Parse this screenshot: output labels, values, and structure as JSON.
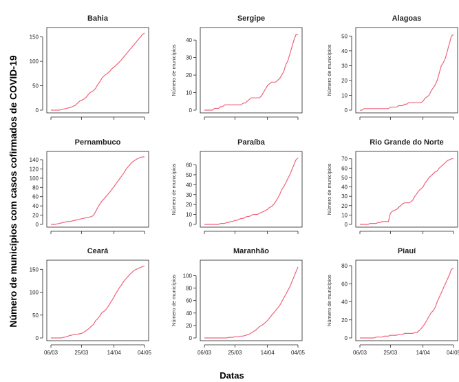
{
  "figure": {
    "ylabel": "Número de municípios com casos cofirmados de COVID-19",
    "xlabel": "Datas"
  },
  "chart_data": [
    {
      "type": "line",
      "title": "Bahia",
      "ylabel": "",
      "yticks": [
        0,
        50,
        100,
        150
      ],
      "ylim": [
        0,
        158
      ],
      "xticks": [],
      "series": [
        {
          "values": [
            0,
            0,
            0,
            0,
            0,
            1,
            2,
            3,
            4,
            5,
            6,
            8,
            10,
            14,
            18,
            20,
            22,
            25,
            30,
            35,
            38,
            40,
            45,
            52,
            58,
            65,
            70,
            73,
            76,
            80,
            85,
            88,
            92,
            96,
            100,
            105,
            110,
            115,
            120,
            125,
            130,
            135,
            140,
            145,
            150,
            155,
            158
          ]
        }
      ],
      "line_color": "#f0627a"
    },
    {
      "type": "line",
      "title": "Sergipe",
      "ylabel": "Número de municípios",
      "yticks": [
        0,
        10,
        20,
        30,
        40
      ],
      "ylim": [
        0,
        44
      ],
      "xticks": [],
      "series": [
        {
          "values": [
            0,
            0,
            0,
            0,
            0,
            1,
            1,
            1,
            2,
            2,
            3,
            3,
            3,
            3,
            3,
            3,
            3,
            3,
            3,
            4,
            4,
            5,
            6,
            7,
            7,
            7,
            7,
            7,
            8,
            10,
            12,
            14,
            15,
            16,
            16,
            16,
            17,
            18,
            20,
            22,
            26,
            28,
            32,
            36,
            40,
            43,
            43
          ]
        }
      ],
      "line_color": "#f0627a"
    },
    {
      "type": "line",
      "title": "Alagoas",
      "ylabel": "Número de municípios",
      "yticks": [
        0,
        10,
        20,
        30,
        40,
        50
      ],
      "ylim": [
        0,
        52
      ],
      "xticks": [],
      "series": [
        {
          "values": [
            0,
            0,
            1,
            1,
            1,
            1,
            1,
            1,
            1,
            1,
            1,
            1,
            1,
            1,
            1,
            2,
            2,
            2,
            2,
            3,
            3,
            3,
            4,
            4,
            5,
            5,
            5,
            5,
            5,
            5,
            5,
            6,
            8,
            9,
            10,
            13,
            15,
            17,
            20,
            25,
            30,
            32,
            35,
            40,
            45,
            50,
            51
          ]
        }
      ],
      "line_color": "#f0627a"
    },
    {
      "type": "line",
      "title": "Pernambuco",
      "ylabel": "",
      "yticks": [
        0,
        20,
        40,
        60,
        80,
        100,
        120,
        140
      ],
      "ylim": [
        0,
        146
      ],
      "xticks": [],
      "series": [
        {
          "values": [
            0,
            0,
            0,
            1,
            2,
            3,
            4,
            5,
            6,
            6,
            7,
            8,
            9,
            10,
            11,
            12,
            13,
            14,
            15,
            16,
            17,
            20,
            28,
            36,
            44,
            50,
            55,
            60,
            65,
            70,
            76,
            82,
            88,
            94,
            100,
            106,
            112,
            120,
            125,
            130,
            135,
            138,
            141,
            143,
            145,
            146,
            146
          ]
        }
      ],
      "line_color": "#f0627a"
    },
    {
      "type": "line",
      "title": "Paraíba",
      "ylabel": "Número de municípios",
      "yticks": [
        0,
        10,
        20,
        30,
        40,
        50,
        60
      ],
      "ylim": [
        0,
        68
      ],
      "xticks": [],
      "series": [
        {
          "values": [
            0,
            0,
            0,
            0,
            0,
            0,
            0,
            0,
            1,
            1,
            1,
            2,
            2,
            3,
            3,
            4,
            4,
            5,
            6,
            6,
            7,
            8,
            8,
            9,
            10,
            10,
            10,
            11,
            12,
            13,
            14,
            15,
            17,
            18,
            20,
            23,
            26,
            30,
            35,
            38,
            42,
            46,
            50,
            55,
            60,
            65,
            67
          ]
        }
      ],
      "line_color": "#f0627a"
    },
    {
      "type": "line",
      "title": "Rio Grande do Norte",
      "ylabel": "Número de municípios",
      "yticks": [
        0,
        10,
        20,
        30,
        40,
        50,
        60,
        70
      ],
      "ylim": [
        0,
        72
      ],
      "xticks": [],
      "series": [
        {
          "values": [
            0,
            0,
            0,
            0,
            0,
            1,
            1,
            1,
            1,
            2,
            2,
            3,
            3,
            3,
            3,
            12,
            14,
            15,
            16,
            18,
            20,
            22,
            23,
            23,
            23,
            24,
            26,
            30,
            33,
            36,
            38,
            40,
            44,
            47,
            50,
            52,
            54,
            56,
            57,
            60,
            62,
            64,
            66,
            68,
            69,
            70,
            70
          ]
        }
      ],
      "line_color": "#f0627a"
    },
    {
      "type": "line",
      "title": "Ceará",
      "ylabel": "",
      "yticks": [
        0,
        50,
        100,
        150
      ],
      "ylim": [
        0,
        158
      ],
      "xticks": [
        "06/03",
        "25/03",
        "14/04",
        "04/05"
      ],
      "series": [
        {
          "values": [
            0,
            0,
            0,
            0,
            0,
            0,
            1,
            2,
            3,
            5,
            6,
            7,
            8,
            8,
            9,
            10,
            12,
            15,
            18,
            22,
            26,
            30,
            38,
            42,
            48,
            55,
            58,
            62,
            68,
            75,
            82,
            90,
            98,
            105,
            112,
            118,
            125,
            130,
            135,
            140,
            144,
            148,
            150,
            152,
            154,
            156,
            157
          ]
        }
      ],
      "line_color": "#f0627a"
    },
    {
      "type": "line",
      "title": "Maranhão",
      "ylabel": "Número de municípios",
      "yticks": [
        0,
        20,
        40,
        60,
        80,
        100
      ],
      "ylim": [
        0,
        116
      ],
      "xticks": [
        "06/03",
        "25/03",
        "14/04",
        "04/05"
      ],
      "series": [
        {
          "values": [
            0,
            0,
            0,
            0,
            0,
            0,
            0,
            0,
            0,
            0,
            0,
            0,
            1,
            1,
            1,
            2,
            2,
            2,
            3,
            3,
            4,
            5,
            6,
            8,
            10,
            12,
            15,
            18,
            20,
            22,
            25,
            28,
            32,
            36,
            40,
            44,
            48,
            52,
            58,
            64,
            70,
            76,
            82,
            90,
            98,
            106,
            114
          ]
        }
      ],
      "line_color": "#f0627a"
    },
    {
      "type": "line",
      "title": "Piauí",
      "ylabel": "Número de municípios",
      "yticks": [
        0,
        20,
        40,
        60,
        80
      ],
      "ylim": [
        0,
        80
      ],
      "xticks": [
        "06/03",
        "25/03",
        "14/04",
        "04/05"
      ],
      "series": [
        {
          "values": [
            0,
            0,
            0,
            0,
            0,
            0,
            0,
            0,
            1,
            1,
            1,
            1,
            2,
            2,
            2,
            3,
            3,
            3,
            3,
            4,
            4,
            4,
            5,
            5,
            5,
            5,
            5,
            6,
            6,
            8,
            10,
            13,
            16,
            20,
            24,
            28,
            30,
            34,
            40,
            45,
            50,
            55,
            60,
            65,
            70,
            76,
            77
          ]
        }
      ],
      "line_color": "#f0627a"
    }
  ]
}
